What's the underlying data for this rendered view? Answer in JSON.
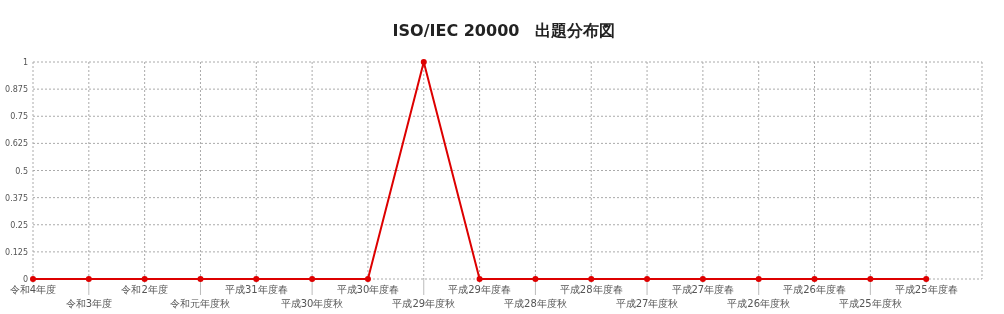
{
  "chart_data": {
    "type": "line",
    "title": "ISO/IEC 20000　出題分布図",
    "categories": [
      "令和4年度",
      "令和3年度",
      "令和2年度",
      "令和元年度秋",
      "平成31年度春",
      "平成30年度秋",
      "平成30年度春",
      "平成29年度秋",
      "平成29年度春",
      "平成28年度秋",
      "平成28年度春",
      "平成27年度秋",
      "平成27年度春",
      "平成26年度秋",
      "平成26年度春",
      "平成25年度秋",
      "平成25年度春"
    ],
    "values": [
      0,
      0,
      0,
      0,
      0,
      0,
      0,
      1,
      0,
      0,
      0,
      0,
      0,
      0,
      0,
      0,
      0
    ],
    "color": "#dd0000",
    "ylim": [
      0,
      1
    ],
    "yticks": [
      0,
      0.125,
      0.25,
      0.375,
      0.5,
      0.625,
      0.75,
      0.875,
      1
    ],
    "grid": true,
    "marker": "circle",
    "line_style": "solid"
  }
}
